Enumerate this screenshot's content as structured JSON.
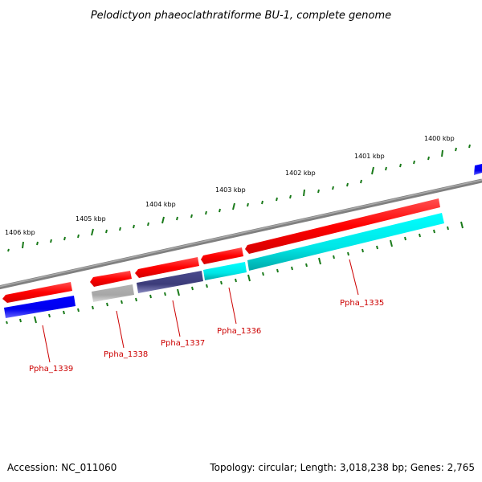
{
  "title": "Pelodictyon phaeoclathratiforme BU-1, complete genome",
  "footer": {
    "accession": "Accession: NC_011060",
    "summary": "Topology: circular; Length: 3,018,238 bp; Genes: 2,765"
  },
  "kbp_labels": [
    "1406 kbp",
    "1405 kbp",
    "1404 kbp",
    "1403 kbp",
    "1402 kbp",
    "1401 kbp",
    "1400 kbp"
  ],
  "gene_labels": [
    "Ppha_1339",
    "Ppha_1338",
    "Ppha_1337",
    "Ppha_1336",
    "Ppha_1335"
  ],
  "colors": {
    "backbone": "#808080",
    "cds_forward": "#ff0000",
    "cds_reverse": "#0000ff",
    "ppha_1338": "#b3b3b3",
    "ppha_1337": "#4a4a8c",
    "cyan": "#00ffff",
    "tick": "#1a7a1a",
    "label": "#cc0000"
  }
}
